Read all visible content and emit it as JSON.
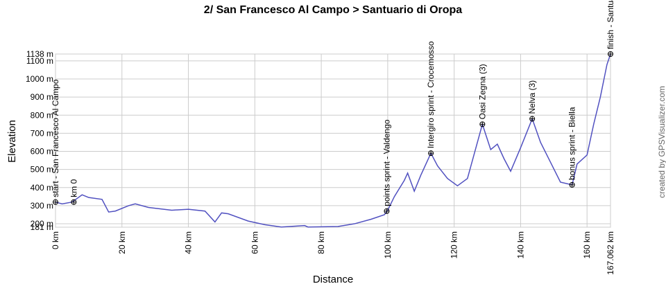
{
  "chart_data": {
    "type": "line",
    "title": "2/ San Francesco Al Campo > Santuario di Oropa",
    "x_label": "Distance",
    "y_label": "Elevation",
    "credit": "created by GPSVisualizer.com",
    "grid": true,
    "xlim": [
      0,
      167.062
    ],
    "ylim": [
      181,
      1138
    ],
    "xticks": [
      {
        "value": 0,
        "label": "0 km"
      },
      {
        "value": 20,
        "label": "20 km"
      },
      {
        "value": 40,
        "label": "40 km"
      },
      {
        "value": 60,
        "label": "60 km"
      },
      {
        "value": 80,
        "label": "80 km"
      },
      {
        "value": 100,
        "label": "100 km"
      },
      {
        "value": 120,
        "label": "120 km"
      },
      {
        "value": 140,
        "label": "140 km"
      },
      {
        "value": 160,
        "label": "160 km"
      },
      {
        "value": 167.062,
        "label": "167.062 km"
      }
    ],
    "yticks": [
      {
        "value": 181,
        "label": "181 m"
      },
      {
        "value": 200,
        "label": "200 m"
      },
      {
        "value": 300,
        "label": "300 m"
      },
      {
        "value": 400,
        "label": "400 m"
      },
      {
        "value": 500,
        "label": "500 m"
      },
      {
        "value": 600,
        "label": "600 m"
      },
      {
        "value": 700,
        "label": "700 m"
      },
      {
        "value": 800,
        "label": "800 m"
      },
      {
        "value": 900,
        "label": "900 m"
      },
      {
        "value": 1000,
        "label": "1000 m"
      },
      {
        "value": 1100,
        "label": "1100 m"
      },
      {
        "value": 1138,
        "label": "1138 m"
      }
    ],
    "series": [
      {
        "name": "Elevation",
        "color": "#5050c0",
        "x": [
          0,
          2,
          5,
          8,
          10,
          14,
          16,
          18,
          22,
          24,
          28,
          35,
          40,
          45,
          48,
          50,
          52,
          58,
          63,
          68,
          75,
          76,
          85,
          90,
          95,
          99,
          100,
          102,
          105,
          106,
          108,
          110,
          113,
          115,
          118,
          121,
          124,
          128.5,
          131,
          133,
          135,
          137,
          140,
          143.5,
          146,
          149,
          152,
          155.5,
          157,
          160,
          162,
          164,
          166,
          167.062
        ],
        "values": [
          320,
          310,
          320,
          360,
          345,
          335,
          265,
          270,
          300,
          310,
          290,
          275,
          280,
          270,
          210,
          260,
          255,
          215,
          195,
          182,
          190,
          182,
          185,
          200,
          225,
          250,
          275,
          350,
          440,
          480,
          380,
          470,
          590,
          520,
          450,
          410,
          450,
          750,
          610,
          640,
          560,
          490,
          620,
          780,
          650,
          540,
          430,
          415,
          530,
          580,
          750,
          900,
          1080,
          1138
        ]
      }
    ],
    "waypoints": [
      {
        "label": "start - San Francesco Al Campo",
        "x": 0,
        "y": 320
      },
      {
        "label": "km 0",
        "x": 5.5,
        "y": 320
      },
      {
        "label": "points sprint - Valdengo",
        "x": 99.7,
        "y": 270
      },
      {
        "label": "Intergiro sprint - Crocemosso",
        "x": 113,
        "y": 590
      },
      {
        "label": "Oasi Zegna (3)",
        "x": 128.5,
        "y": 750
      },
      {
        "label": "Nelva (3)",
        "x": 143.5,
        "y": 780
      },
      {
        "label": "bonus sprint - Biella",
        "x": 155.5,
        "y": 415
      },
      {
        "label": "finish - Santuario di Oropa",
        "x": 167.062,
        "y": 1138
      }
    ]
  }
}
